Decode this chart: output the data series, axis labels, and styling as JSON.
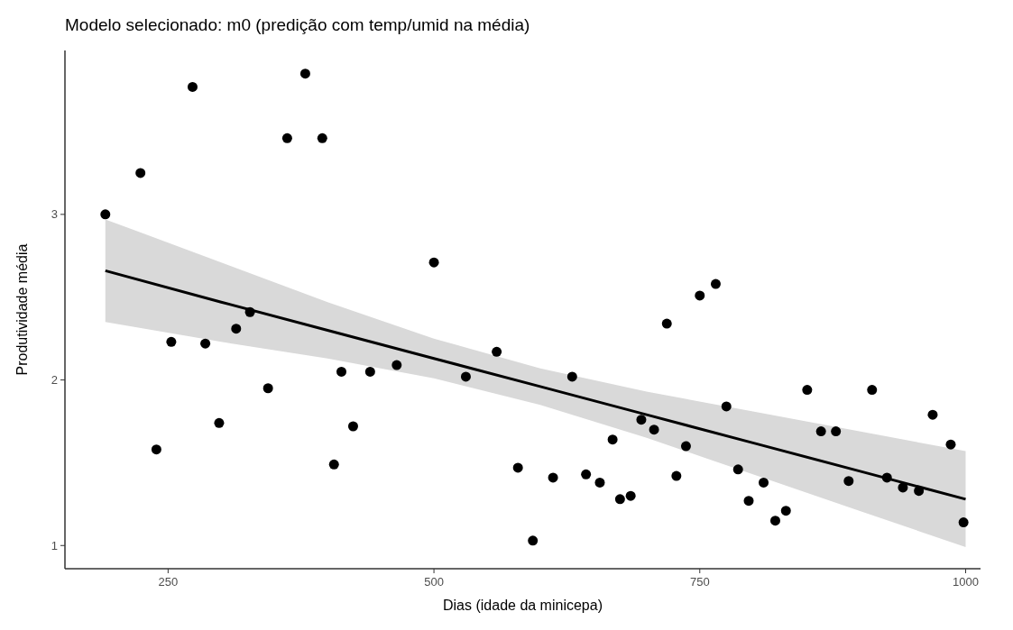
{
  "chart_data": {
    "type": "scatter",
    "title": "Modelo selecionado: m0 (predição com temp/umid na média)",
    "xlabel": "Dias (idade da minicepa)",
    "ylabel": "Produtividade média",
    "xlim": [
      153,
      1014
    ],
    "xticks": [
      250,
      500,
      750,
      1000
    ],
    "ylim": [
      0.86,
      3.99
    ],
    "yticks": [
      1,
      2,
      3
    ],
    "grid": false,
    "series": [
      {
        "color": "#000000",
        "marker": "circle",
        "x": [
          191,
          224,
          239,
          253,
          273,
          285,
          298,
          314,
          327,
          344,
          362,
          379,
          395,
          406,
          413,
          424,
          440,
          465,
          500,
          530,
          559,
          579,
          593,
          612,
          630,
          643,
          656,
          668,
          675,
          685,
          695,
          707,
          719,
          728,
          737,
          750,
          765,
          775,
          786,
          796,
          810,
          821,
          831,
          851,
          864,
          878,
          890,
          912,
          926,
          941,
          956,
          969,
          986,
          998
        ],
        "values": [
          3.0,
          3.25,
          1.58,
          2.23,
          3.77,
          2.22,
          1.74,
          2.31,
          2.41,
          1.95,
          3.46,
          3.85,
          3.46,
          1.49,
          2.05,
          1.72,
          2.05,
          2.09,
          2.71,
          2.02,
          2.17,
          1.47,
          1.03,
          1.41,
          2.02,
          1.43,
          1.38,
          1.64,
          1.28,
          1.3,
          1.76,
          1.7,
          2.34,
          1.42,
          1.6,
          2.51,
          2.58,
          1.84,
          1.46,
          1.27,
          1.38,
          1.15,
          1.21,
          1.94,
          1.69,
          1.69,
          1.39,
          1.94,
          1.41,
          1.35,
          1.33,
          1.79,
          1.61,
          1.14
        ]
      },
      {
        "type": "line",
        "color": "#000000",
        "marker": "none",
        "x": [
          191,
          300,
          400,
          500,
          600,
          700,
          800,
          900,
          1000
        ],
        "values": [
          2.66,
          2.47,
          2.3,
          2.13,
          1.96,
          1.79,
          1.62,
          1.45,
          1.28
        ],
        "lower": [
          2.35,
          2.23,
          2.13,
          2.01,
          1.85,
          1.65,
          1.43,
          1.21,
          0.99
        ],
        "upper": [
          2.97,
          2.71,
          2.47,
          2.25,
          2.07,
          1.93,
          1.81,
          1.69,
          1.57
        ]
      }
    ]
  }
}
